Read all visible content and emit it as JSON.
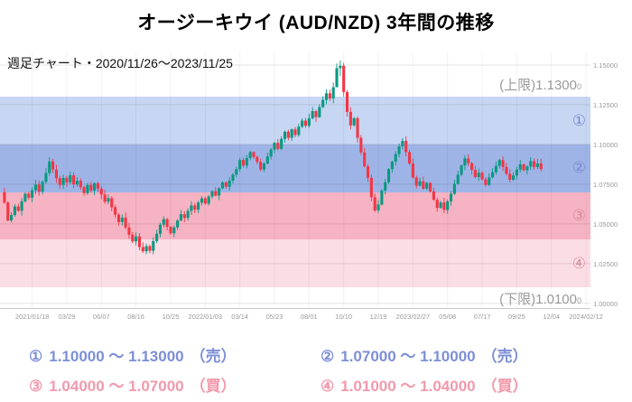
{
  "title": "オージーキウイ (AUD/NZD) 3年間の推移",
  "chart": {
    "subtitle": "週足チャート・2020/11/26〜2023/11/25",
    "upper_limit_label": "(上限)1.1300",
    "upper_limit_small": "0",
    "lower_limit_label": "(下限)1.0100",
    "lower_limit_small": "0"
  },
  "chart_data": {
    "type": "candlestick",
    "pair": "AUD/NZD",
    "timeframe": "weekly",
    "price_max": 1.1585,
    "price_min": 0.9965,
    "weeks_total": 169,
    "first_open": 1.07,
    "up_color": "#089981",
    "down_color": "#f23645",
    "zones": [
      {
        "num": "①",
        "from": 1.1,
        "to": 1.13,
        "side": "売",
        "color": "#c7d6f2",
        "marker_color": "#7688cf"
      },
      {
        "num": "②",
        "from": 1.07,
        "to": 1.1,
        "side": "売",
        "color": "#9fb4e6",
        "marker_color": "#7688cf"
      },
      {
        "num": "③",
        "from": 1.04,
        "to": 1.07,
        "side": "買",
        "color": "#f5b3c3",
        "marker_color": "#d98c9b"
      },
      {
        "num": "④",
        "from": 1.01,
        "to": 1.04,
        "side": "買",
        "color": "#fbdde6",
        "marker_color": "#d98c9b"
      }
    ],
    "y_ticks": [
      {
        "value": 1.15,
        "label": "1.15000"
      },
      {
        "value": 1.125,
        "label": "1.12500"
      },
      {
        "value": 1.1,
        "label": "1.10000"
      },
      {
        "value": 1.075,
        "label": "1.07500"
      },
      {
        "value": 1.05,
        "label": "1.05000"
      },
      {
        "value": 1.025,
        "label": "1.02500"
      },
      {
        "value": 1.0,
        "label": "1.00000"
      }
    ],
    "x_ticks": [
      {
        "week": 8,
        "label": "2021/01/18"
      },
      {
        "week": 18,
        "label": "03/29"
      },
      {
        "week": 28,
        "label": "06/07"
      },
      {
        "week": 38,
        "label": "08/16"
      },
      {
        "week": 48,
        "label": "10/25"
      },
      {
        "week": 58,
        "label": "2022/01/03"
      },
      {
        "week": 68,
        "label": "03/14"
      },
      {
        "week": 78,
        "label": "05/23"
      },
      {
        "week": 88,
        "label": "08/01"
      },
      {
        "week": 98,
        "label": "10/10"
      },
      {
        "week": 108,
        "label": "12/19"
      },
      {
        "week": 118,
        "label": "2023/02/27"
      },
      {
        "week": 128,
        "label": "05/08"
      },
      {
        "week": 138,
        "label": "07/17"
      },
      {
        "week": 148,
        "label": "09/25"
      },
      {
        "week": 158,
        "label": "12/04"
      },
      {
        "week": 168,
        "label": "2024/02/12"
      }
    ],
    "closes": [
      1.0635,
      1.0522,
      1.0556,
      1.061,
      1.0583,
      1.0642,
      1.069,
      1.0665,
      1.0712,
      1.0748,
      1.0703,
      1.0765,
      1.082,
      1.0893,
      1.0842,
      1.0788,
      1.0745,
      1.079,
      1.0762,
      1.0806,
      1.0748,
      1.0772,
      1.0731,
      1.0694,
      1.0745,
      1.071,
      1.0756,
      1.0722,
      1.0685,
      1.064,
      1.0662,
      1.0605,
      1.0558,
      1.0512,
      1.054,
      1.0478,
      1.0432,
      1.039,
      1.0421,
      1.0355,
      1.0328,
      1.036,
      1.0331,
      1.0392,
      1.0438,
      1.0495,
      1.053,
      1.0482,
      1.0441,
      1.0478,
      1.0522,
      1.0561,
      1.0538,
      1.0582,
      1.0616,
      1.059,
      1.0634,
      1.0661,
      1.0628,
      1.0672,
      1.0706,
      1.0678,
      1.0725,
      1.0761,
      1.0734,
      1.0772,
      1.081,
      1.0845,
      1.0902,
      1.0868,
      1.0915,
      1.0952,
      1.0921,
      1.089,
      1.0842,
      1.088,
      1.0925,
      1.0968,
      1.101,
      1.0972,
      1.1035,
      1.108,
      1.1042,
      1.1095,
      1.106,
      1.1112,
      1.115,
      1.1118,
      1.1165,
      1.121,
      1.1172,
      1.1235,
      1.128,
      1.1322,
      1.129,
      1.136,
      1.148,
      1.1495,
      1.133,
      1.1205,
      1.112,
      1.1165,
      1.1042,
      1.095,
      1.0862,
      1.079,
      1.0668,
      1.0585,
      1.0622,
      1.071,
      1.0762,
      1.0845,
      1.0892,
      1.094,
      1.0988,
      1.1022,
      1.0952,
      1.088,
      1.0792,
      1.0741,
      1.0768,
      1.0722,
      1.0758,
      1.0705,
      1.0652,
      1.0601,
      1.0635,
      1.0588,
      1.0642,
      1.069,
      1.0752,
      1.081,
      1.0868,
      1.0912,
      1.0882,
      1.084,
      1.0795,
      1.0822,
      1.078,
      1.0745,
      1.0792,
      1.0825,
      1.0865,
      1.0902,
      1.0858,
      1.0815,
      1.0778,
      1.0805,
      1.0842,
      1.0875,
      1.0838,
      1.0862,
      1.0895,
      1.0858,
      1.088,
      1.0845
    ],
    "wick_overrides": {
      "96": [
        1.151,
        1.1392
      ],
      "97": [
        1.1528,
        1.143
      ]
    }
  },
  "legend": {
    "sell_color": "#7d8fd6",
    "buy_color": "#f299ac",
    "items": [
      {
        "num": "①",
        "range": "1.10000 ～ 1.13000",
        "side": "（売）",
        "kind": "sell"
      },
      {
        "num": "②",
        "range": "1.07000 ～ 1.10000",
        "side": "（売）",
        "kind": "sell"
      },
      {
        "num": "③",
        "range": "1.04000 ～ 1.07000",
        "side": "（買）",
        "kind": "buy"
      },
      {
        "num": "④",
        "range": "1.01000 ～ 1.04000",
        "side": "（買）",
        "kind": "buy"
      }
    ]
  }
}
